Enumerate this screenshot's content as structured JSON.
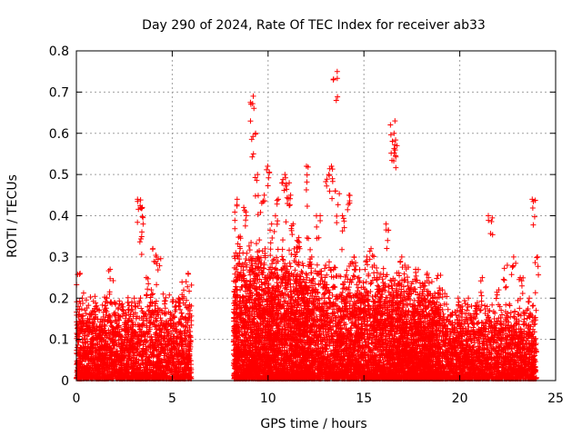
{
  "chart_data": {
    "type": "scatter",
    "title": "Day 290 of 2024, Rate Of TEC Index for receiver ab33",
    "xlabel": "GPS time / hours",
    "ylabel": "ROTI / TECUs",
    "xlim": [
      0,
      25
    ],
    "ylim": [
      0,
      0.8
    ],
    "xticks": [
      "0",
      "5",
      "10",
      "15",
      "20",
      "25"
    ],
    "yticks": [
      "0",
      "0.1",
      "0.2",
      "0.3",
      "0.4",
      "0.5",
      "0.6",
      "0.7",
      "0.8"
    ],
    "grid": true,
    "marker": "+",
    "color": "#ff0000",
    "series": [
      {
        "x": [
          0.1,
          0.3,
          0.6,
          0.9,
          1.2,
          1.6,
          1.8,
          2.0,
          2.4,
          2.7,
          3.0,
          3.3,
          3.35,
          3.4,
          3.7,
          4.0,
          4.1,
          4.3,
          4.6,
          5.0,
          5.3,
          5.6,
          5.9,
          8.3,
          8.5,
          8.8,
          9.1,
          9.2,
          9.25,
          9.4,
          9.7,
          10.0,
          10.2,
          10.5,
          10.8,
          11.0,
          11.1,
          11.3,
          11.6,
          12.0,
          12.3,
          12.6,
          12.9,
          13.1,
          13.3,
          13.5,
          13.6,
          13.9,
          14.2,
          14.5,
          14.8,
          15.1,
          15.4,
          15.8,
          16.2,
          16.5,
          16.55,
          16.6,
          16.9,
          17.2,
          17.5,
          17.8,
          18.1,
          18.4,
          18.8,
          19.2,
          19.6,
          20.0,
          20.4,
          20.8,
          21.2,
          21.6,
          22.0,
          22.4,
          22.8,
          23.2,
          23.6,
          23.9,
          24.0
        ],
        "y": [
          0.26,
          0.2,
          0.15,
          0.18,
          0.12,
          0.2,
          0.27,
          0.13,
          0.1,
          0.16,
          0.2,
          0.44,
          0.42,
          0.38,
          0.25,
          0.22,
          0.32,
          0.3,
          0.21,
          0.16,
          0.2,
          0.24,
          0.26,
          0.44,
          0.35,
          0.42,
          0.3,
          0.69,
          0.6,
          0.5,
          0.45,
          0.52,
          0.38,
          0.44,
          0.5,
          0.48,
          0.45,
          0.38,
          0.34,
          0.52,
          0.3,
          0.4,
          0.28,
          0.5,
          0.52,
          0.75,
          0.46,
          0.4,
          0.45,
          0.3,
          0.25,
          0.3,
          0.32,
          0.22,
          0.38,
          0.63,
          0.6,
          0.57,
          0.3,
          0.28,
          0.22,
          0.27,
          0.2,
          0.25,
          0.18,
          0.22,
          0.16,
          0.2,
          0.2,
          0.18,
          0.25,
          0.4,
          0.22,
          0.28,
          0.3,
          0.25,
          0.2,
          0.44,
          0.3
        ]
      }
    ],
    "bands": [
      {
        "x0": 0.0,
        "x1": 6.0,
        "ylo": 0.0,
        "yhi": 0.22,
        "density": 2200
      },
      {
        "x0": 8.2,
        "x1": 12.2,
        "ylo": 0.0,
        "yhi": 0.35,
        "density": 2800
      },
      {
        "x0": 12.2,
        "x1": 16.4,
        "ylo": 0.0,
        "yhi": 0.3,
        "density": 2200
      },
      {
        "x0": 16.4,
        "x1": 19.0,
        "ylo": 0.0,
        "yhi": 0.27,
        "density": 1700
      },
      {
        "x0": 19.0,
        "x1": 24.0,
        "ylo": 0.0,
        "yhi": 0.2,
        "density": 1900
      }
    ]
  }
}
